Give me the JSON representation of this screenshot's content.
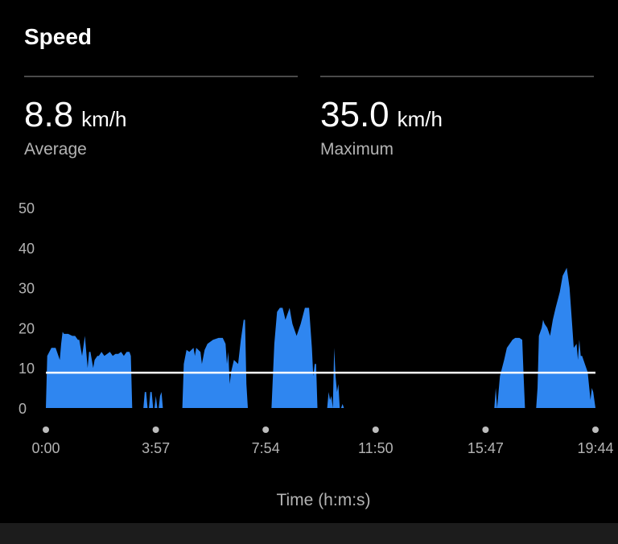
{
  "header": {
    "title": "Speed"
  },
  "stats": {
    "average": {
      "value": "8.8",
      "unit": "km/h",
      "label": "Average"
    },
    "maximum": {
      "value": "35.0",
      "unit": "km/h",
      "label": "Maximum"
    }
  },
  "colors": {
    "area": "#2f86f0",
    "average_line": "#ffffff",
    "axis_text": "#b3b3b3"
  },
  "chart_data": {
    "type": "area",
    "xlabel": "Time (h:m:s)",
    "ylabel": "",
    "ylim": [
      0,
      50
    ],
    "y_ticks": [
      "0",
      "10",
      "20",
      "30",
      "40",
      "50"
    ],
    "x_tick_labels": [
      "0:00",
      "3:57",
      "7:54",
      "11:50",
      "15:47",
      "19:44"
    ],
    "x_unit": "minutes",
    "xlim": [
      0,
      19.73
    ],
    "grid": false,
    "reference_lines": [
      {
        "name": "Average",
        "value": 8.8
      }
    ],
    "segments": [
      {
        "x": [
          0.0,
          0.05,
          0.2,
          0.35,
          0.45,
          0.5,
          0.55,
          0.6,
          0.65,
          0.8,
          0.95,
          1.05,
          1.15,
          1.2,
          1.3,
          1.4,
          1.5,
          1.55,
          1.6,
          1.7,
          1.75,
          1.85,
          1.9,
          2.0,
          2.1,
          2.2,
          2.3,
          2.4,
          2.5,
          2.6,
          2.7,
          2.8,
          2.9,
          3.0,
          3.05,
          3.1,
          3.15
        ],
        "y": [
          0,
          13,
          15,
          15,
          13,
          12,
          16,
          19,
          18.5,
          18.5,
          18,
          18,
          17,
          17,
          13,
          18,
          10,
          14,
          14,
          10,
          12,
          13,
          13,
          14,
          13,
          13.5,
          14,
          13,
          13.5,
          13.5,
          14,
          13,
          14,
          14,
          13,
          0,
          0
        ]
      },
      {
        "x": [
          3.5,
          3.55,
          3.6,
          3.65,
          3.7,
          3.75,
          3.8,
          3.85,
          3.9,
          3.95,
          4.0,
          4.05,
          4.1,
          4.15,
          4.2,
          4.25,
          4.3
        ],
        "y": [
          0,
          4,
          4,
          0,
          0,
          4,
          4,
          0,
          0,
          3,
          0,
          0,
          3,
          4,
          0,
          0,
          0
        ]
      },
      {
        "x": [
          4.9,
          4.95,
          5.05,
          5.15,
          5.3,
          5.35,
          5.4,
          5.55,
          5.6,
          5.7,
          5.8,
          6.0,
          6.2,
          6.35,
          6.45,
          6.5,
          6.55,
          6.6,
          6.65,
          6.75,
          6.9,
          7.0,
          7.1,
          7.15,
          7.2,
          7.25
        ],
        "y": [
          0,
          11,
          14.5,
          14,
          15,
          13,
          15,
          14,
          11,
          14.5,
          16,
          17,
          17.5,
          17.5,
          16,
          11,
          14,
          6,
          9,
          12,
          11,
          17,
          22,
          22,
          6,
          0
        ]
      },
      {
        "x": [
          8.1,
          8.2,
          8.3,
          8.4,
          8.5,
          8.6,
          8.7,
          8.75,
          8.8,
          8.85,
          8.9,
          9.0,
          9.1,
          9.15,
          9.3,
          9.45,
          9.55,
          9.6,
          9.65,
          9.7,
          9.75,
          9.8
        ],
        "y": [
          0,
          16,
          24,
          25,
          25,
          22,
          24,
          25,
          23,
          21,
          20,
          18,
          20,
          21,
          25,
          25,
          15,
          8,
          11,
          11,
          0,
          0
        ]
      },
      {
        "x": [
          10.1,
          10.15,
          10.2,
          10.25,
          10.3,
          10.35,
          10.4,
          10.45,
          10.5,
          10.55,
          10.6,
          10.65,
          10.7
        ],
        "y": [
          0,
          4,
          2,
          3,
          0,
          15,
          8,
          4,
          6,
          0,
          0,
          1,
          0
        ]
      },
      {
        "x": [
          16.1,
          16.15,
          16.2,
          16.3,
          16.45,
          16.55,
          16.65,
          16.75,
          16.85,
          17.0,
          17.1,
          17.15,
          17.2
        ],
        "y": [
          0,
          5,
          0,
          8,
          12,
          15,
          16,
          17,
          17.5,
          17.5,
          17,
          8,
          0
        ]
      },
      {
        "x": [
          17.6,
          17.65,
          17.7,
          17.8,
          17.85,
          17.9,
          18.0,
          18.1,
          18.2,
          18.3,
          18.45,
          18.55,
          18.7,
          18.8,
          18.9,
          18.95,
          19.05,
          19.1,
          19.15,
          19.2,
          19.25,
          19.3,
          19.35,
          19.45,
          19.55,
          19.6,
          19.65,
          19.73
        ],
        "y": [
          0,
          5,
          18,
          20,
          22,
          21,
          20,
          18,
          22,
          25,
          29,
          33,
          35,
          30,
          20,
          15,
          16,
          12,
          17,
          13,
          13,
          12,
          11,
          9,
          2,
          5,
          4,
          0
        ]
      }
    ]
  }
}
